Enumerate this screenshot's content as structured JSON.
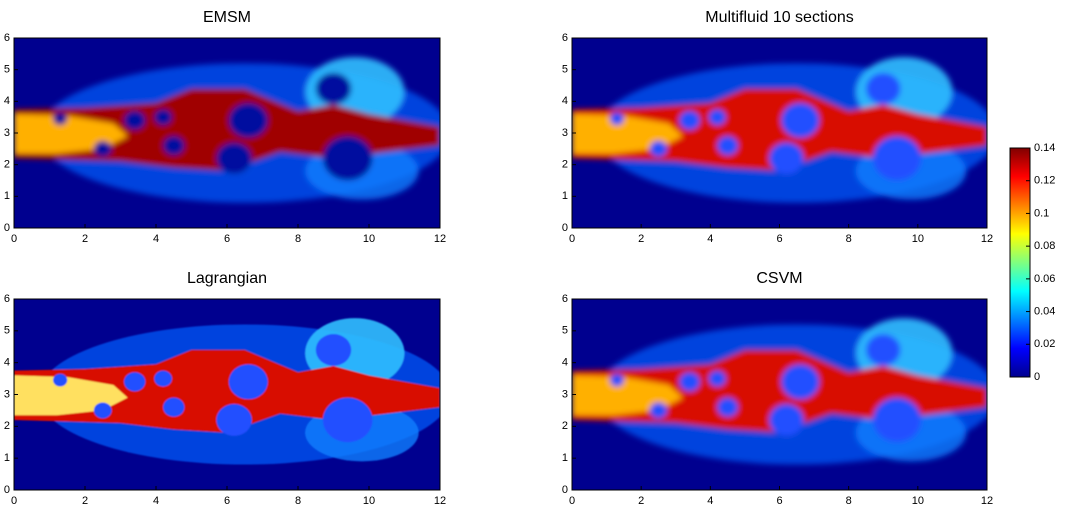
{
  "chart_data": [
    {
      "type": "heatmap",
      "title": "EMSM",
      "xlim": [
        0,
        12
      ],
      "ylim": [
        0,
        6
      ],
      "xticks": [
        0,
        2,
        4,
        6,
        8,
        10,
        12
      ],
      "yticks": [
        0,
        1,
        2,
        3,
        4,
        5,
        6
      ]
    },
    {
      "type": "heatmap",
      "title": "Multifluid 10 sections",
      "xlim": [
        0,
        12
      ],
      "ylim": [
        0,
        6
      ],
      "xticks": [
        0,
        2,
        4,
        6,
        8,
        10,
        12
      ],
      "yticks": [
        0,
        1,
        2,
        3,
        4,
        5,
        6
      ]
    },
    {
      "type": "heatmap",
      "title": "Lagrangian",
      "xlim": [
        0,
        12
      ],
      "ylim": [
        0,
        6
      ],
      "xticks": [
        0,
        2,
        4,
        6,
        8,
        10,
        12
      ],
      "yticks": [
        0,
        1,
        2,
        3,
        4,
        5,
        6
      ]
    },
    {
      "type": "heatmap",
      "title": "CSVM",
      "xlim": [
        0,
        12
      ],
      "ylim": [
        0,
        6
      ],
      "xticks": [
        0,
        2,
        4,
        6,
        8,
        10,
        12
      ],
      "yticks": [
        0,
        1,
        2,
        3,
        4,
        5,
        6
      ]
    },
    {
      "type": "colorbar",
      "colormap": "jet",
      "ylim": [
        0,
        0.14
      ],
      "yticks": [
        0,
        0.02,
        0.04,
        0.06,
        0.08,
        0.1,
        0.12,
        0.14
      ]
    }
  ]
}
